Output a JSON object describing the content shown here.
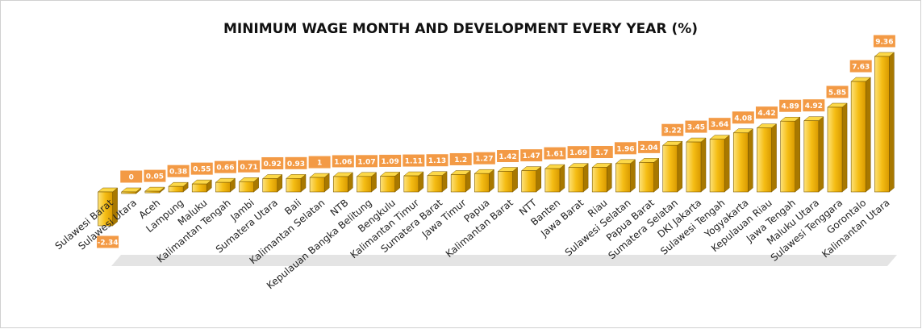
{
  "chart_data": {
    "type": "bar",
    "title": "MINIMUM WAGE MONTH AND DEVELOPMENT EVERY YEAR (%)",
    "categories": [
      "Sulawesi Barat",
      "Sulawesi Utara",
      "Aceh",
      "Lampung",
      "Maluku",
      "Kalimantan Tengah",
      "Jambi",
      "Sumatera Utara",
      "Bali",
      "Kalimantan Selatan",
      "NTB",
      "Kepulauan Bangka Belitung",
      "Bengkulu",
      "Kalimantan Timur",
      "Sumatera Barat",
      "Jawa Timur",
      "Papua",
      "Kalimantan Barat",
      "NTT",
      "Banten",
      "Jawa Barat",
      "Riau",
      "Sulawesi Selatan",
      "Papua Barat",
      "Sumatera Selatan",
      "DKI Jakarta",
      "Sulawesi Tengah",
      "Yogyakarta",
      "Kepulauan Riau",
      "Jawa Tengah",
      "Maluku Utara",
      "Sulawesi Tenggara",
      "Gorontalo",
      "Kalimantan Utara"
    ],
    "values": [
      -2.34,
      0,
      0.05,
      0.38,
      0.55,
      0.66,
      0.71,
      0.92,
      0.93,
      1,
      1.06,
      1.07,
      1.09,
      1.11,
      1.13,
      1.2,
      1.27,
      1.42,
      1.47,
      1.61,
      1.69,
      1.7,
      1.96,
      2.04,
      3.22,
      3.45,
      3.64,
      4.08,
      4.42,
      4.89,
      4.92,
      5.85,
      7.63,
      9.36
    ],
    "color": "#f5bd14"
  }
}
